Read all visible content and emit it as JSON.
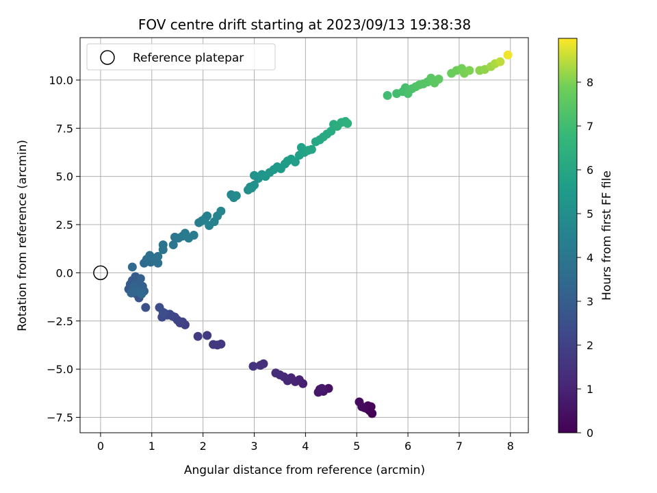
{
  "chart_data": {
    "type": "scatter",
    "title": "FOV centre drift starting at 2023/09/13 19:38:38",
    "xlabel": "Angular distance from reference (arcmin)",
    "ylabel": "Rotation from reference (arcmin)",
    "xlim": [
      -0.4,
      8.35
    ],
    "ylim": [
      -8.3,
      12.2
    ],
    "xticks": [
      0,
      1,
      2,
      3,
      4,
      5,
      6,
      7,
      8
    ],
    "xtick_labels": [
      "0",
      "1",
      "2",
      "3",
      "4",
      "5",
      "6",
      "7",
      "8"
    ],
    "yticks": [
      -7.5,
      -5.0,
      -2.5,
      0.0,
      2.5,
      5.0,
      7.5,
      10.0
    ],
    "ytick_labels": [
      "−7.5",
      "−5.0",
      "−2.5",
      "0.0",
      "2.5",
      "5.0",
      "7.5",
      "10.0"
    ],
    "grid": true,
    "legend": {
      "position": "top-left",
      "entries": [
        "Reference platepar"
      ]
    },
    "reference_point": {
      "x": 0,
      "y": 0
    },
    "colorbar": {
      "label": "Hours from first FF file",
      "range": [
        0,
        9
      ],
      "ticks": [
        0,
        1,
        2,
        3,
        4,
        5,
        6,
        7,
        8
      ],
      "tick_labels": [
        "0",
        "1",
        "2",
        "3",
        "4",
        "5",
        "6",
        "7",
        "8"
      ],
      "colormap": "viridis"
    },
    "points": [
      {
        "x": 5.3,
        "y": -7.3,
        "h": 0.0
      },
      {
        "x": 5.25,
        "y": -7.15,
        "h": 0.05
      },
      {
        "x": 5.2,
        "y": -7.05,
        "h": 0.1
      },
      {
        "x": 5.28,
        "y": -6.95,
        "h": 0.1
      },
      {
        "x": 5.22,
        "y": -6.9,
        "h": 0.15
      },
      {
        "x": 5.15,
        "y": -7.0,
        "h": 0.2
      },
      {
        "x": 5.05,
        "y": -6.7,
        "h": 0.25
      },
      {
        "x": 5.1,
        "y": -6.95,
        "h": 0.3
      },
      {
        "x": 4.45,
        "y": -6.0,
        "h": 0.5
      },
      {
        "x": 4.35,
        "y": -6.15,
        "h": 0.55
      },
      {
        "x": 4.28,
        "y": -6.05,
        "h": 0.6
      },
      {
        "x": 4.25,
        "y": -6.2,
        "h": 0.65
      },
      {
        "x": 4.32,
        "y": -6.0,
        "h": 0.7
      },
      {
        "x": 3.95,
        "y": -5.75,
        "h": 0.9
      },
      {
        "x": 3.88,
        "y": -5.55,
        "h": 0.95
      },
      {
        "x": 3.8,
        "y": -5.65,
        "h": 1.0
      },
      {
        "x": 3.72,
        "y": -5.45,
        "h": 1.05
      },
      {
        "x": 3.65,
        "y": -5.6,
        "h": 1.1
      },
      {
        "x": 3.58,
        "y": -5.4,
        "h": 1.15
      },
      {
        "x": 3.5,
        "y": -5.3,
        "h": 1.2
      },
      {
        "x": 3.42,
        "y": -5.2,
        "h": 1.25
      },
      {
        "x": 3.18,
        "y": -4.72,
        "h": 1.35
      },
      {
        "x": 3.12,
        "y": -4.8,
        "h": 1.4
      },
      {
        "x": 2.98,
        "y": -4.85,
        "h": 1.45
      },
      {
        "x": 2.35,
        "y": -3.7,
        "h": 1.6
      },
      {
        "x": 2.28,
        "y": -3.75,
        "h": 1.65
      },
      {
        "x": 2.2,
        "y": -3.72,
        "h": 1.7
      },
      {
        "x": 2.08,
        "y": -3.25,
        "h": 1.75
      },
      {
        "x": 1.9,
        "y": -3.3,
        "h": 1.8
      },
      {
        "x": 1.65,
        "y": -2.7,
        "h": 1.9
      },
      {
        "x": 1.6,
        "y": -2.55,
        "h": 1.95
      },
      {
        "x": 1.55,
        "y": -2.6,
        "h": 2.0
      },
      {
        "x": 1.5,
        "y": -2.45,
        "h": 2.05
      },
      {
        "x": 1.45,
        "y": -2.3,
        "h": 2.1
      },
      {
        "x": 1.4,
        "y": -2.25,
        "h": 2.15
      },
      {
        "x": 1.35,
        "y": -2.15,
        "h": 2.2
      },
      {
        "x": 1.3,
        "y": -2.2,
        "h": 2.25
      },
      {
        "x": 1.25,
        "y": -2.1,
        "h": 2.3
      },
      {
        "x": 1.2,
        "y": -2.3,
        "h": 2.35
      },
      {
        "x": 1.15,
        "y": -1.8,
        "h": 2.4
      },
      {
        "x": 1.22,
        "y": -2.05,
        "h": 2.45
      },
      {
        "x": 0.88,
        "y": -1.8,
        "h": 2.55
      },
      {
        "x": 0.75,
        "y": -1.3,
        "h": 2.6
      },
      {
        "x": 0.7,
        "y": -1.1,
        "h": 2.65
      },
      {
        "x": 0.65,
        "y": -1.0,
        "h": 2.7
      },
      {
        "x": 0.6,
        "y": -0.9,
        "h": 2.75
      },
      {
        "x": 0.55,
        "y": -0.85,
        "h": 2.8
      },
      {
        "x": 0.58,
        "y": -0.6,
        "h": 2.85
      },
      {
        "x": 0.62,
        "y": -0.4,
        "h": 2.9
      },
      {
        "x": 0.68,
        "y": -0.2,
        "h": 2.95
      },
      {
        "x": 0.72,
        "y": -0.5,
        "h": 3.0
      },
      {
        "x": 0.78,
        "y": -0.3,
        "h": 3.05
      },
      {
        "x": 0.82,
        "y": -0.7,
        "h": 3.1
      },
      {
        "x": 0.85,
        "y": -0.95,
        "h": 3.15
      },
      {
        "x": 0.75,
        "y": -0.8,
        "h": 3.2
      },
      {
        "x": 0.66,
        "y": -0.7,
        "h": 3.25
      },
      {
        "x": 0.6,
        "y": -1.05,
        "h": 3.3
      },
      {
        "x": 0.7,
        "y": -0.95,
        "h": 3.35
      },
      {
        "x": 0.8,
        "y": -1.1,
        "h": 3.4
      },
      {
        "x": 0.62,
        "y": 0.3,
        "h": 3.45
      },
      {
        "x": 0.85,
        "y": 0.5,
        "h": 3.5
      },
      {
        "x": 0.9,
        "y": 0.7,
        "h": 3.55
      },
      {
        "x": 0.98,
        "y": 0.55,
        "h": 3.6
      },
      {
        "x": 0.96,
        "y": 0.9,
        "h": 3.65
      },
      {
        "x": 1.05,
        "y": 0.75,
        "h": 3.7
      },
      {
        "x": 1.12,
        "y": 0.5,
        "h": 3.75
      },
      {
        "x": 1.12,
        "y": 0.85,
        "h": 3.8
      },
      {
        "x": 1.22,
        "y": 1.2,
        "h": 3.85
      },
      {
        "x": 1.22,
        "y": 1.45,
        "h": 3.9
      },
      {
        "x": 1.42,
        "y": 1.45,
        "h": 3.95
      },
      {
        "x": 1.45,
        "y": 1.85,
        "h": 4.0
      },
      {
        "x": 1.52,
        "y": 1.8,
        "h": 4.05
      },
      {
        "x": 1.6,
        "y": 1.9,
        "h": 4.1
      },
      {
        "x": 1.65,
        "y": 2.05,
        "h": 4.15
      },
      {
        "x": 1.72,
        "y": 1.8,
        "h": 4.2
      },
      {
        "x": 1.82,
        "y": 1.95,
        "h": 4.25
      },
      {
        "x": 1.92,
        "y": 2.6,
        "h": 4.3
      },
      {
        "x": 1.98,
        "y": 2.7,
        "h": 4.35
      },
      {
        "x": 2.05,
        "y": 2.85,
        "h": 4.4
      },
      {
        "x": 2.08,
        "y": 2.95,
        "h": 4.45
      },
      {
        "x": 2.12,
        "y": 2.45,
        "h": 4.5
      },
      {
        "x": 2.22,
        "y": 2.65,
        "h": 4.55
      },
      {
        "x": 2.28,
        "y": 2.95,
        "h": 4.6
      },
      {
        "x": 2.35,
        "y": 3.2,
        "h": 4.65
      },
      {
        "x": 2.55,
        "y": 4.05,
        "h": 4.75
      },
      {
        "x": 2.6,
        "y": 3.9,
        "h": 4.8
      },
      {
        "x": 2.65,
        "y": 4.0,
        "h": 4.85
      },
      {
        "x": 2.88,
        "y": 4.3,
        "h": 4.95
      },
      {
        "x": 2.92,
        "y": 4.45,
        "h": 5.0
      },
      {
        "x": 2.95,
        "y": 4.4,
        "h": 5.05
      },
      {
        "x": 3.0,
        "y": 4.55,
        "h": 5.1
      },
      {
        "x": 3.0,
        "y": 5.05,
        "h": 5.15
      },
      {
        "x": 3.08,
        "y": 4.9,
        "h": 5.2
      },
      {
        "x": 3.15,
        "y": 5.1,
        "h": 5.25
      },
      {
        "x": 3.22,
        "y": 5.0,
        "h": 5.3
      },
      {
        "x": 3.3,
        "y": 5.2,
        "h": 5.35
      },
      {
        "x": 3.38,
        "y": 5.35,
        "h": 5.4
      },
      {
        "x": 3.45,
        "y": 5.5,
        "h": 5.45
      },
      {
        "x": 3.52,
        "y": 5.4,
        "h": 5.5
      },
      {
        "x": 3.6,
        "y": 5.65,
        "h": 5.55
      },
      {
        "x": 3.65,
        "y": 5.8,
        "h": 5.6
      },
      {
        "x": 3.72,
        "y": 5.9,
        "h": 5.65
      },
      {
        "x": 3.8,
        "y": 5.75,
        "h": 5.7
      },
      {
        "x": 3.88,
        "y": 6.1,
        "h": 5.75
      },
      {
        "x": 3.92,
        "y": 6.5,
        "h": 5.8
      },
      {
        "x": 3.98,
        "y": 6.25,
        "h": 5.85
      },
      {
        "x": 4.05,
        "y": 6.35,
        "h": 5.9
      },
      {
        "x": 4.12,
        "y": 6.4,
        "h": 5.95
      },
      {
        "x": 4.2,
        "y": 6.8,
        "h": 6.0
      },
      {
        "x": 4.28,
        "y": 6.9,
        "h": 6.05
      },
      {
        "x": 4.35,
        "y": 7.05,
        "h": 6.1
      },
      {
        "x": 4.42,
        "y": 7.2,
        "h": 6.15
      },
      {
        "x": 4.5,
        "y": 7.35,
        "h": 6.2
      },
      {
        "x": 4.55,
        "y": 7.7,
        "h": 6.25
      },
      {
        "x": 4.62,
        "y": 7.6,
        "h": 6.3
      },
      {
        "x": 4.7,
        "y": 7.8,
        "h": 6.35
      },
      {
        "x": 4.78,
        "y": 7.85,
        "h": 6.4
      },
      {
        "x": 4.82,
        "y": 7.75,
        "h": 6.45
      },
      {
        "x": 5.6,
        "y": 9.2,
        "h": 7.0
      },
      {
        "x": 5.78,
        "y": 9.3,
        "h": 7.05
      },
      {
        "x": 5.9,
        "y": 9.4,
        "h": 7.1
      },
      {
        "x": 5.95,
        "y": 9.6,
        "h": 7.15
      },
      {
        "x": 6.0,
        "y": 9.3,
        "h": 7.2
      },
      {
        "x": 6.08,
        "y": 9.55,
        "h": 7.25
      },
      {
        "x": 6.15,
        "y": 9.65,
        "h": 7.3
      },
      {
        "x": 6.22,
        "y": 9.75,
        "h": 7.35
      },
      {
        "x": 6.3,
        "y": 9.8,
        "h": 7.4
      },
      {
        "x": 6.38,
        "y": 9.9,
        "h": 7.45
      },
      {
        "x": 6.45,
        "y": 10.1,
        "h": 7.5
      },
      {
        "x": 6.52,
        "y": 9.85,
        "h": 7.55
      },
      {
        "x": 6.6,
        "y": 10.05,
        "h": 7.6
      },
      {
        "x": 6.85,
        "y": 10.35,
        "h": 7.8
      },
      {
        "x": 6.95,
        "y": 10.5,
        "h": 7.85
      },
      {
        "x": 7.05,
        "y": 10.6,
        "h": 7.9
      },
      {
        "x": 7.1,
        "y": 10.35,
        "h": 7.95
      },
      {
        "x": 7.2,
        "y": 10.5,
        "h": 8.0
      },
      {
        "x": 7.4,
        "y": 10.5,
        "h": 8.1
      },
      {
        "x": 7.5,
        "y": 10.55,
        "h": 8.15
      },
      {
        "x": 7.62,
        "y": 10.7,
        "h": 8.25
      },
      {
        "x": 7.7,
        "y": 10.85,
        "h": 8.35
      },
      {
        "x": 7.8,
        "y": 10.95,
        "h": 8.5
      },
      {
        "x": 7.95,
        "y": 11.3,
        "h": 8.9
      }
    ]
  }
}
